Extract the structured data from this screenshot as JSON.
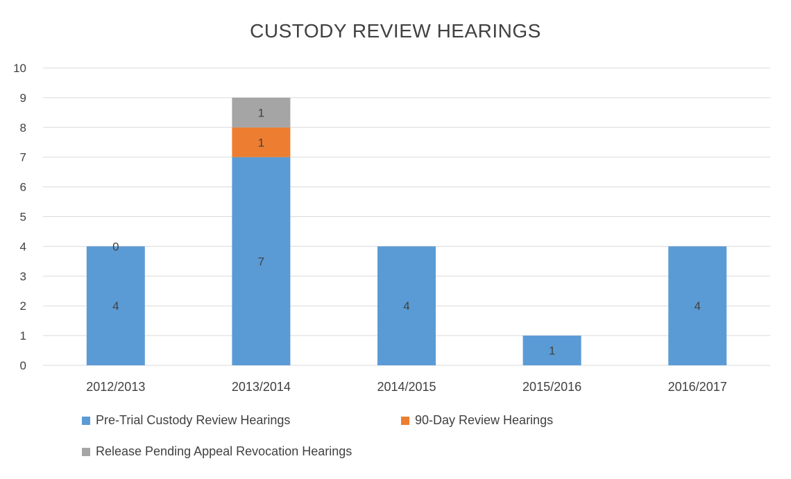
{
  "chart_data": {
    "type": "bar",
    "stacked": true,
    "title": "CUSTODY REVIEW HEARINGS",
    "xlabel": "",
    "ylabel": "",
    "ylim": [
      0,
      10
    ],
    "yticks": [
      0,
      1,
      2,
      3,
      4,
      5,
      6,
      7,
      8,
      9,
      10
    ],
    "grid": true,
    "legend_position": "bottom",
    "categories": [
      "2012/2013",
      "2013/2014",
      "2014/2015",
      "2015/2016",
      "2016/2017"
    ],
    "series": [
      {
        "name": "Pre-Trial Custody Review Hearings",
        "color": "#5b9bd5",
        "values": [
          4,
          7,
          4,
          1,
          4
        ],
        "labels": [
          "4",
          "7",
          "4",
          "1",
          "4"
        ]
      },
      {
        "name": "90-Day Review Hearings",
        "color": "#ed7d31",
        "values": [
          0,
          1,
          0,
          0,
          0
        ],
        "labels": [
          "0",
          "1",
          null,
          null,
          null
        ]
      },
      {
        "name": "Release Pending Appeal Revocation Hearings",
        "color": "#a5a5a5",
        "values": [
          0,
          1,
          0,
          0,
          0
        ],
        "labels": [
          null,
          "1",
          null,
          null,
          null
        ]
      }
    ]
  }
}
